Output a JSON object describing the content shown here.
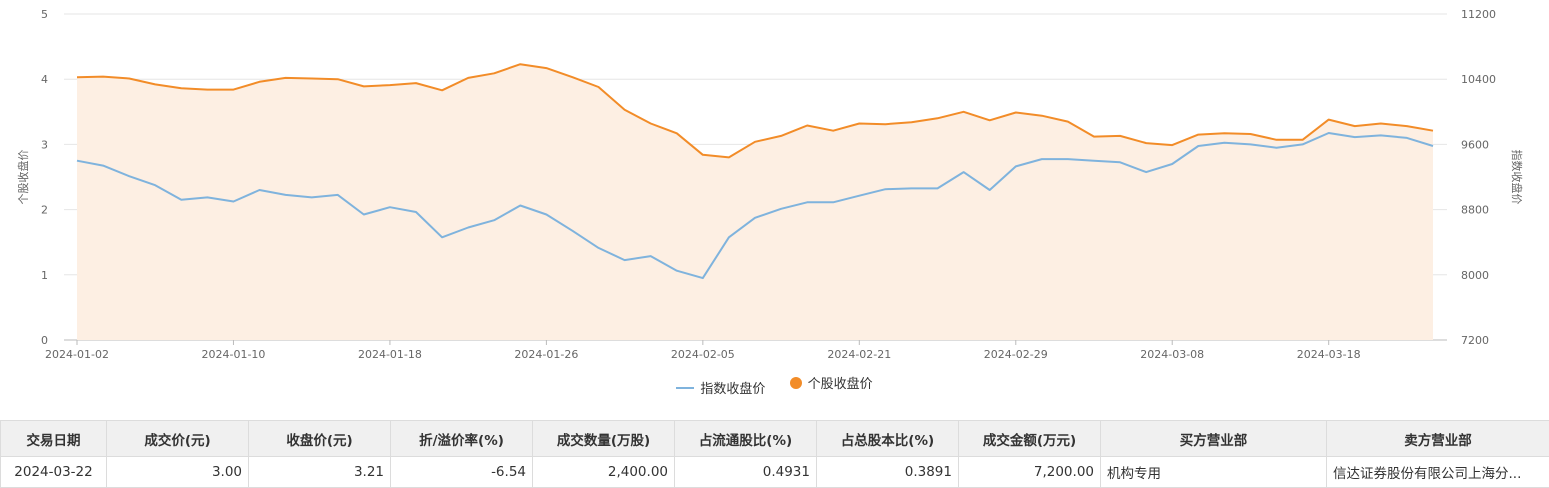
{
  "chart_data": {
    "type": "line",
    "x": [
      "2024-01-02",
      "2024-01-03",
      "2024-01-04",
      "2024-01-05",
      "2024-01-08",
      "2024-01-09",
      "2024-01-10",
      "2024-01-11",
      "2024-01-12",
      "2024-01-15",
      "2024-01-16",
      "2024-01-17",
      "2024-01-18",
      "2024-01-19",
      "2024-01-22",
      "2024-01-23",
      "2024-01-24",
      "2024-01-25",
      "2024-01-26",
      "2024-01-29",
      "2024-01-30",
      "2024-01-31",
      "2024-02-01",
      "2024-02-02",
      "2024-02-05",
      "2024-02-06",
      "2024-02-07",
      "2024-02-08",
      "2024-02-19",
      "2024-02-20",
      "2024-02-21",
      "2024-02-22",
      "2024-02-23",
      "2024-02-26",
      "2024-02-27",
      "2024-02-28",
      "2024-02-29",
      "2024-03-01",
      "2024-03-04",
      "2024-03-05",
      "2024-03-06",
      "2024-03-07",
      "2024-03-08",
      "2024-03-11",
      "2024-03-12",
      "2024-03-13",
      "2024-03-14",
      "2024-03-15",
      "2024-03-18",
      "2024-03-19",
      "2024-03-20",
      "2024-03-21",
      "2024-03-22"
    ],
    "x_ticks": [
      "2024-01-02",
      "2024-01-10",
      "2024-01-18",
      "2024-01-26",
      "2024-02-05",
      "2024-02-21",
      "2024-02-29",
      "2024-03-08",
      "2024-03-18"
    ],
    "series": [
      {
        "name": "指数收盘价",
        "axis": "right",
        "color": "#7fb3dd",
        "values": [
          9400,
          9340,
          9210,
          9100,
          8920,
          8950,
          8900,
          9040,
          8980,
          8950,
          8980,
          8740,
          8830,
          8770,
          8460,
          8580,
          8670,
          8850,
          8740,
          8540,
          8330,
          8180,
          8230,
          8050,
          7960,
          8460,
          8700,
          8810,
          8890,
          8890,
          8970,
          9050,
          9060,
          9060,
          9260,
          9040,
          9330,
          9420,
          9420,
          9400,
          9380,
          9260,
          9360,
          9580,
          9620,
          9600,
          9560,
          9600,
          9740,
          9690,
          9710,
          9680,
          9580
        ]
      },
      {
        "name": "个股收盘价",
        "axis": "left",
        "color": "#f28c28",
        "fill": "#fdefe3",
        "values": [
          4.03,
          4.04,
          4.01,
          3.92,
          3.86,
          3.84,
          3.84,
          3.96,
          4.02,
          4.01,
          4.0,
          3.89,
          3.91,
          3.94,
          3.83,
          4.02,
          4.09,
          4.23,
          4.17,
          4.03,
          3.88,
          3.53,
          3.32,
          3.17,
          2.84,
          2.8,
          3.04,
          3.13,
          3.29,
          3.21,
          3.32,
          3.31,
          3.34,
          3.4,
          3.5,
          3.37,
          3.49,
          3.44,
          3.35,
          3.12,
          3.13,
          3.02,
          2.99,
          3.15,
          3.17,
          3.16,
          3.07,
          3.07,
          3.38,
          3.28,
          3.32,
          3.28,
          3.21
        ]
      }
    ],
    "y_left": {
      "label": "个股收盘价",
      "ylim": [
        0,
        5
      ],
      "ticks": [
        0,
        1,
        2,
        3,
        4,
        5
      ]
    },
    "y_right": {
      "label": "指数收盘价",
      "ylim": [
        7200,
        11200
      ],
      "ticks": [
        7200,
        8000,
        8800,
        9600,
        10400,
        11200
      ]
    },
    "grid": true,
    "legend": "bottom-center"
  },
  "legend": {
    "index_label": "指数收盘价",
    "stock_label": "个股收盘价"
  },
  "table": {
    "headers": [
      "交易日期",
      "成交价(元)",
      "收盘价(元)",
      "折/溢价率(%)",
      "成交数量(万股)",
      "占流通股比(%)",
      "占总股本比(%)",
      "成交金额(万元)",
      "买方营业部",
      "卖方营业部"
    ],
    "rows": [
      [
        "2024-03-22",
        "3.00",
        "3.21",
        "-6.54",
        "2,400.00",
        "0.4931",
        "0.3891",
        "7,200.00",
        "机构专用",
        "信达证券股份有限公司上海分..."
      ]
    ]
  }
}
